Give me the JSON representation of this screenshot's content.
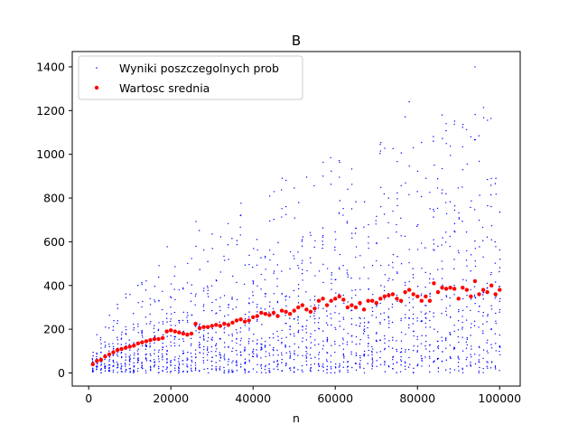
{
  "chart_data": {
    "type": "scatter",
    "title": "B",
    "xlabel": "n",
    "ylabel": "",
    "xlim": [
      -4000,
      105000
    ],
    "ylim": [
      -60,
      1470
    ],
    "xticks": [
      0,
      20000,
      40000,
      60000,
      80000,
      100000
    ],
    "xtick_labels": [
      "0",
      "20000",
      "40000",
      "60000",
      "80000",
      "100000"
    ],
    "yticks": [
      0,
      200,
      400,
      600,
      800,
      1000,
      1200,
      1400
    ],
    "ytick_labels": [
      "0",
      "200",
      "400",
      "600",
      "800",
      "1000",
      "1200",
      "1400"
    ],
    "grid": false,
    "legend_position": "upper-left",
    "series": [
      {
        "name": "Wyniki poszczegolnych prob",
        "color": "#0000ff",
        "marker": "small-dot",
        "description_values": {
          "x_range": [
            1000,
            100000
          ],
          "x_step": 1000,
          "notable_outliers": [
            {
              "x": 78000,
              "y": 1240
            },
            {
              "x": 86000,
              "y": 1180
            },
            {
              "x": 87000,
              "y": 1140
            },
            {
              "x": 93000,
              "y": 1080
            },
            {
              "x": 94000,
              "y": 1400
            },
            {
              "x": 79000,
              "y": 1030
            },
            {
              "x": 57000,
              "y": 900
            },
            {
              "x": 61000,
              "y": 895
            }
          ]
        }
      },
      {
        "name": "Wartosc srednia",
        "color": "#ff0000",
        "marker": "dot",
        "x": [
          1000,
          2000,
          3000,
          4000,
          5000,
          6000,
          7000,
          8000,
          9000,
          10000,
          11000,
          12000,
          13000,
          14000,
          15000,
          16000,
          17000,
          18000,
          19000,
          20000,
          21000,
          22000,
          23000,
          24000,
          25000,
          26000,
          27000,
          28000,
          29000,
          30000,
          31000,
          32000,
          33000,
          34000,
          35000,
          36000,
          37000,
          38000,
          39000,
          40000,
          41000,
          42000,
          43000,
          44000,
          45000,
          46000,
          47000,
          48000,
          49000,
          50000,
          51000,
          52000,
          53000,
          54000,
          55000,
          56000,
          57000,
          58000,
          59000,
          60000,
          61000,
          62000,
          63000,
          64000,
          65000,
          66000,
          67000,
          68000,
          69000,
          70000,
          71000,
          72000,
          73000,
          74000,
          75000,
          76000,
          77000,
          78000,
          79000,
          80000,
          81000,
          82000,
          83000,
          84000,
          85000,
          86000,
          87000,
          88000,
          89000,
          90000,
          91000,
          92000,
          93000,
          94000,
          95000,
          96000,
          97000,
          98000,
          99000,
          100000
        ],
        "y": [
          40,
          55,
          60,
          75,
          85,
          95,
          105,
          110,
          115,
          120,
          125,
          135,
          140,
          145,
          150,
          155,
          155,
          160,
          190,
          195,
          190,
          185,
          180,
          175,
          180,
          225,
          205,
          210,
          210,
          215,
          220,
          215,
          225,
          220,
          230,
          240,
          245,
          235,
          240,
          255,
          260,
          275,
          270,
          265,
          275,
          260,
          285,
          280,
          270,
          285,
          300,
          310,
          290,
          280,
          295,
          330,
          340,
          310,
          330,
          340,
          350,
          335,
          300,
          310,
          300,
          320,
          290,
          330,
          330,
          320,
          340,
          350,
          355,
          360,
          340,
          330,
          370,
          380,
          360,
          350,
          330,
          350,
          330,
          410,
          370,
          390,
          385,
          390,
          385,
          340,
          390,
          380,
          350,
          420,
          360,
          380,
          370,
          400,
          360,
          380
        ]
      }
    ]
  }
}
